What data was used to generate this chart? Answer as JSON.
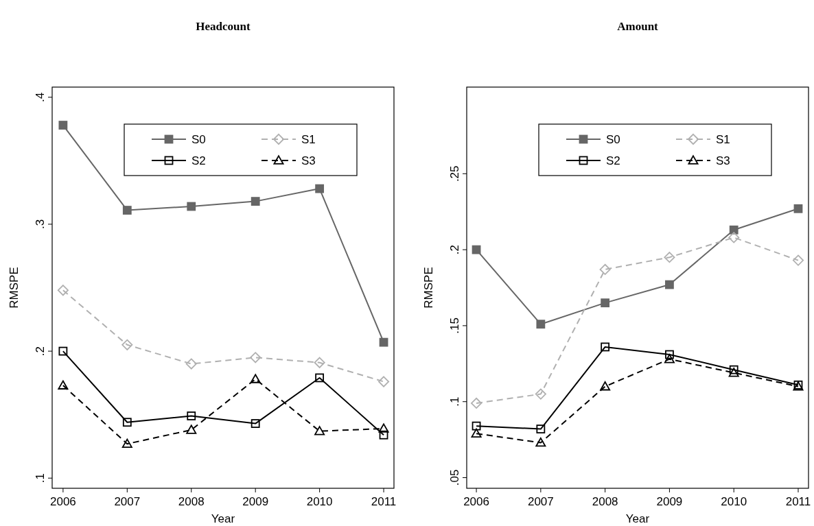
{
  "chart_data": [
    {
      "type": "line",
      "title": "Headcount",
      "xlabel": "Year",
      "ylabel": "RMSPE",
      "x": [
        2006,
        2007,
        2008,
        2009,
        2010,
        2011
      ],
      "xlim": [
        2005.83,
        2011.16
      ],
      "xticks": [
        2006,
        2007,
        2008,
        2009,
        2010,
        2011
      ],
      "ylim": [
        0.092,
        0.408
      ],
      "yticks": [
        {
          "value": 0.1,
          "label": ".1"
        },
        {
          "value": 0.2,
          "label": ".2"
        },
        {
          "value": 0.3,
          "label": ".3"
        },
        {
          "value": 0.4,
          "label": ".4"
        }
      ],
      "grid": false,
      "legend": "top",
      "series": [
        {
          "name": "S0",
          "color": "#666666",
          "marker": "square",
          "line_style": "solid",
          "values": [
            0.378,
            0.311,
            0.314,
            0.318,
            0.328,
            0.207
          ]
        },
        {
          "name": "S1",
          "color": "#b0b0b0",
          "marker": "diamond",
          "line_style": "dashed",
          "values": [
            0.248,
            0.205,
            0.19,
            0.195,
            0.191,
            0.176
          ]
        },
        {
          "name": "S2",
          "color": "#000000",
          "marker": "square",
          "line_style": "solid",
          "values": [
            0.2,
            0.144,
            0.149,
            0.143,
            0.179,
            0.134
          ]
        },
        {
          "name": "S3",
          "color": "#000000",
          "marker": "triangle",
          "line_style": "dashed",
          "values": [
            0.173,
            0.127,
            0.138,
            0.178,
            0.137,
            0.139
          ]
        }
      ]
    },
    {
      "type": "line",
      "title": "Amount",
      "xlabel": "Year",
      "ylabel": "RMSPE",
      "x": [
        2006,
        2007,
        2008,
        2009,
        2010,
        2011
      ],
      "xlim": [
        2005.85,
        2011.16
      ],
      "xticks": [
        2006,
        2007,
        2008,
        2009,
        2010,
        2011
      ],
      "ylim": [
        0.043,
        0.307
      ],
      "yticks": [
        {
          "value": 0.05,
          "label": ".05"
        },
        {
          "value": 0.1,
          "label": ".1"
        },
        {
          "value": 0.15,
          "label": ".15"
        },
        {
          "value": 0.2,
          "label": ".2"
        },
        {
          "value": 0.25,
          "label": ".25"
        }
      ],
      "grid": false,
      "legend": "top",
      "series": [
        {
          "name": "S0",
          "color": "#666666",
          "marker": "square",
          "line_style": "solid",
          "values": [
            0.2,
            0.151,
            0.165,
            0.177,
            0.213,
            0.227
          ]
        },
        {
          "name": "S1",
          "color": "#b0b0b0",
          "marker": "diamond",
          "line_style": "dashed",
          "values": [
            0.099,
            0.105,
            0.187,
            0.195,
            0.208,
            0.193
          ]
        },
        {
          "name": "S2",
          "color": "#000000",
          "marker": "square",
          "line_style": "solid",
          "values": [
            0.084,
            0.082,
            0.136,
            0.131,
            0.121,
            0.111
          ]
        },
        {
          "name": "S3",
          "color": "#000000",
          "marker": "triangle",
          "line_style": "dashed",
          "values": [
            0.079,
            0.073,
            0.11,
            0.128,
            0.119,
            0.11
          ]
        }
      ]
    }
  ]
}
